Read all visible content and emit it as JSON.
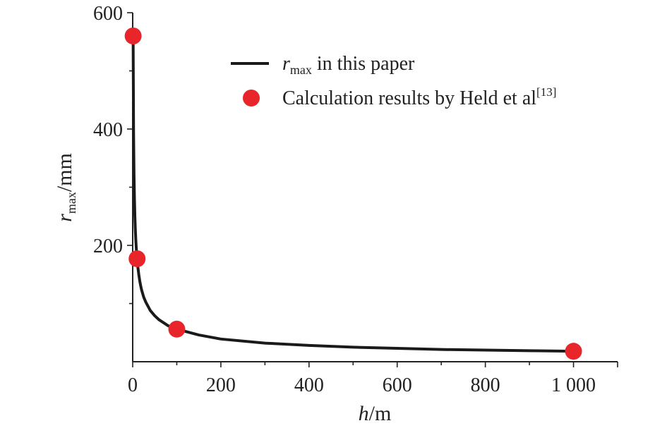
{
  "chart_data": {
    "type": "line+scatter",
    "xlabel": {
      "italic": "h",
      "rest": "/m"
    },
    "ylabel": {
      "italic": "r",
      "sub": "max",
      "rest": "/mm"
    },
    "xlim": [
      0,
      1100
    ],
    "ylim": [
      0,
      600
    ],
    "x_ticks": [
      {
        "value": 0,
        "label": "0"
      },
      {
        "value": 200,
        "label": "200"
      },
      {
        "value": 400,
        "label": "400"
      },
      {
        "value": 600,
        "label": "600"
      },
      {
        "value": 800,
        "label": "800"
      },
      {
        "value": 1000,
        "label": "1 000"
      }
    ],
    "y_ticks": [
      {
        "value": 200,
        "label": "200"
      },
      {
        "value": 400,
        "label": "400"
      },
      {
        "value": 600,
        "label": "600"
      }
    ],
    "legend_position": "top-right",
    "series": [
      {
        "kind": "line",
        "legend": {
          "italic": "r",
          "sub": "max",
          "rest": " in this paper"
        },
        "color": "#1a1a1a",
        "x": [
          1,
          2,
          3,
          4,
          5,
          6,
          7,
          8,
          9,
          10,
          12,
          14,
          16,
          18,
          20,
          25,
          30,
          40,
          50,
          60,
          80,
          100,
          150,
          200,
          300,
          400,
          500,
          600,
          700,
          800,
          900,
          1000
        ],
        "y": [
          556,
          394,
          322,
          279,
          249,
          227,
          210,
          197,
          186,
          176,
          161,
          149,
          139,
          131,
          124,
          111,
          102,
          88,
          79,
          72,
          62,
          56,
          46,
          39,
          32,
          28,
          25,
          23,
          21,
          20,
          19,
          18
        ]
      },
      {
        "kind": "scatter",
        "legend": {
          "text": "Calculation results by Held et al",
          "sup": "[13]"
        },
        "color": "#e8252a",
        "x": [
          1,
          10,
          100,
          1000
        ],
        "y": [
          560,
          177,
          56,
          18
        ]
      }
    ]
  }
}
